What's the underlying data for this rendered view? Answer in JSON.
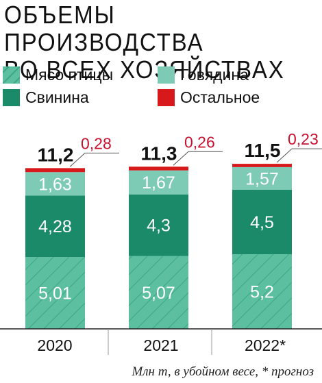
{
  "header": {
    "title_line1": "ОБЪЕМЫ ПРОИЗВОДСТВА",
    "title_line2": "ВО ВСЕХ ХОЗЯЙСТВАХ"
  },
  "legend": [
    {
      "label": "Мясо птицы",
      "color": "#5cbf9f",
      "pattern": "hatch"
    },
    {
      "label": "Говядина",
      "color": "#7dcbb4",
      "pattern": "solid"
    },
    {
      "label": "Свинина",
      "color": "#1a8a68",
      "pattern": "solid"
    },
    {
      "label": "Остальное",
      "color": "#d7191c",
      "pattern": "solid"
    }
  ],
  "footnote": "Млн т, в убойном весе, * прогноз",
  "chart_data": {
    "type": "bar",
    "stacked": true,
    "categories": [
      "2020",
      "2021",
      "2022*"
    ],
    "series": [
      {
        "name": "Мясо птицы",
        "values": [
          5.01,
          5.07,
          5.2
        ],
        "color": "#5cbf9f"
      },
      {
        "name": "Свинина",
        "values": [
          4.28,
          4.3,
          4.5
        ],
        "color": "#1a8a68"
      },
      {
        "name": "Говядина",
        "values": [
          1.63,
          1.67,
          1.57
        ],
        "color": "#7dcbb4"
      },
      {
        "name": "Остальное",
        "values": [
          0.28,
          0.26,
          0.23
        ],
        "color": "#d7191c"
      }
    ],
    "segment_labels": [
      [
        "5,01",
        "4,28",
        "1,63"
      ],
      [
        "5,07",
        "4,3",
        "1,67"
      ],
      [
        "5,2",
        "4,5",
        "1,57"
      ]
    ],
    "other_labels": [
      "0,28",
      "0,26",
      "0,23"
    ],
    "totals": [
      "11,2",
      "11,3",
      "11,5"
    ],
    "ylim": [
      0,
      11.6
    ],
    "grid": false,
    "legend_position": "top"
  }
}
